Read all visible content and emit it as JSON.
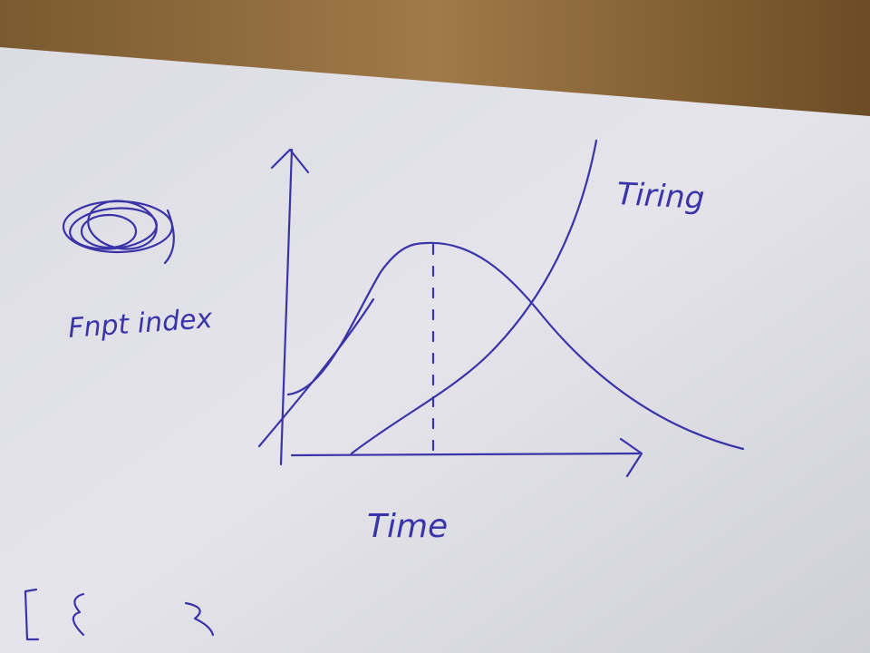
{
  "sketch": {
    "y_label": "Fnpt index",
    "curve_label": "Tiring",
    "x_label": "Time"
  }
}
